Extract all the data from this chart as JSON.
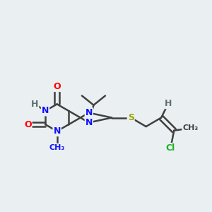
{
  "background_color": "#eaf0f2",
  "atom_colors": {
    "C": "#404040",
    "N": "#1010ff",
    "O": "#ff0000",
    "S": "#a0a000",
    "Cl": "#20b020",
    "H": "#607070"
  },
  "bond_color": "#404040",
  "bond_width": 1.8,
  "figsize": [
    3.0,
    3.0
  ],
  "dpi": 100
}
